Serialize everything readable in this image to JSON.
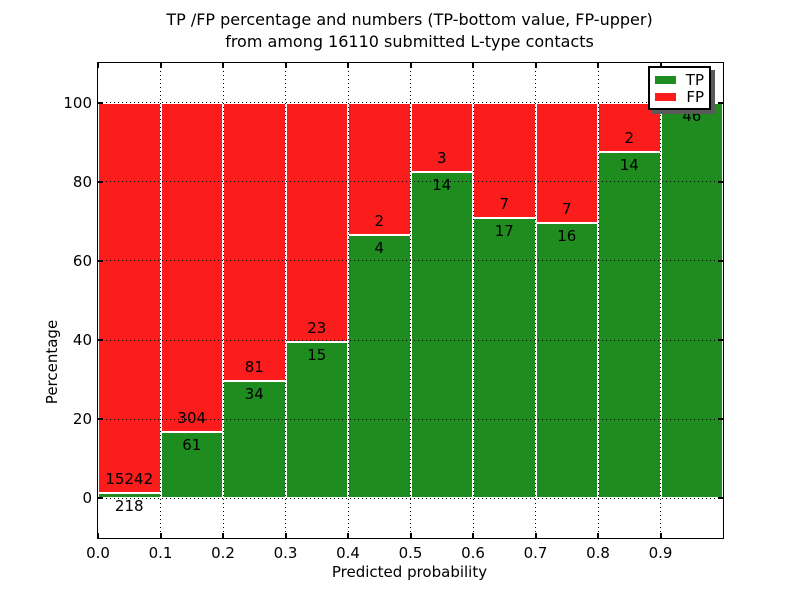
{
  "title": {
    "line1": "TP /FP percentage and numbers (TP-bottom value, FP-upper)",
    "line2": "from among 16110 submitted L-type contacts"
  },
  "axes": {
    "ylabel": "Percentage",
    "xlabel": "Predicted probability"
  },
  "legend": {
    "items": [
      {
        "label": "TP",
        "color": "#1e8c1e"
      },
      {
        "label": "FP",
        "color": "#fb1c1c"
      }
    ],
    "position": "upper right"
  },
  "chart_data": {
    "type": "bar",
    "stacked": true,
    "normalized": "each bin scaled to 100%",
    "title": "TP /FP percentage and numbers (TP-bottom value, FP-upper) from among 16110 submitted L-type contacts",
    "xlabel": "Predicted probability",
    "ylabel": "Percentage",
    "total_contacts": 16110,
    "bins": [
      "0.0-0.1",
      "0.1-0.2",
      "0.2-0.3",
      "0.3-0.4",
      "0.4-0.5",
      "0.5-0.6",
      "0.6-0.7",
      "0.7-0.8",
      "0.8-0.9",
      "0.9-1.0"
    ],
    "series": [
      {
        "name": "TP",
        "color": "#1e8c1e",
        "counts": [
          218,
          61,
          34,
          15,
          4,
          14,
          17,
          16,
          14,
          46
        ],
        "percent": [
          1.41,
          16.71,
          29.57,
          39.47,
          66.67,
          82.35,
          70.83,
          69.57,
          87.5,
          100.0
        ]
      },
      {
        "name": "FP",
        "color": "#fb1c1c",
        "counts": [
          15242,
          304,
          81,
          23,
          2,
          3,
          7,
          7,
          2,
          0
        ],
        "percent": [
          98.59,
          83.29,
          70.43,
          60.53,
          33.33,
          17.65,
          29.17,
          30.43,
          12.5,
          0.0
        ]
      }
    ],
    "yticks": [
      0,
      20,
      40,
      60,
      80,
      100
    ],
    "xticks": [
      "0.0",
      "0.1",
      "0.2",
      "0.3",
      "0.4",
      "0.5",
      "0.6",
      "0.7",
      "0.8",
      "0.9"
    ],
    "ylim": [
      -10,
      110
    ],
    "xlim": [
      0.0,
      1.0
    ],
    "grid": "dotted black, drawn above bars",
    "bar_edge_color": "#ffffff"
  }
}
